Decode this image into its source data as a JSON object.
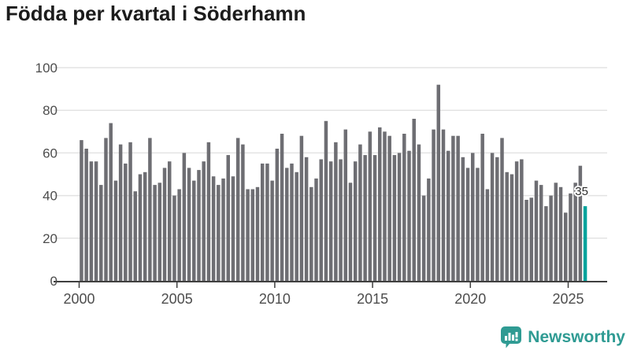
{
  "title": "Födda per kvartal i Söderhamn",
  "footer": {
    "brand": "Newsworthy"
  },
  "colors": {
    "bar": "#6e6e73",
    "highlight": "#00a39c",
    "grid": "#e3e3e3",
    "axis_text": "#4d4d4d",
    "axis_line": "#3f3f3f",
    "title_text": "#1c1c1c",
    "logo": "#2f9b93",
    "annotation_text": "#2d2d2d"
  },
  "chart_data": {
    "type": "bar",
    "title": "Födda per kvartal i Söderhamn",
    "x_range": "2000 Q1 – 2025 Q4",
    "period": "quarterly",
    "xlabel": "",
    "ylabel": "",
    "ylim": [
      0,
      100
    ],
    "grid": true,
    "yticks": [
      0,
      20,
      40,
      60,
      80,
      100
    ],
    "xticks": [
      "2000",
      "2005",
      "2010",
      "2015",
      "2020",
      "2025"
    ],
    "values": [
      66,
      62,
      56,
      56,
      45,
      67,
      74,
      47,
      64,
      55,
      65,
      42,
      50,
      51,
      67,
      45,
      46,
      53,
      56,
      40,
      43,
      60,
      53,
      47,
      52,
      56,
      65,
      49,
      45,
      48,
      59,
      49,
      67,
      64,
      43,
      43,
      44,
      55,
      55,
      47,
      62,
      69,
      53,
      55,
      51,
      68,
      58,
      44,
      48,
      57,
      75,
      56,
      65,
      57,
      71,
      46,
      56,
      64,
      59,
      70,
      59,
      72,
      70,
      68,
      59,
      60,
      69,
      61,
      76,
      64,
      40,
      48,
      71,
      92,
      71,
      61,
      68,
      68,
      58,
      53,
      60,
      53,
      69,
      43,
      60,
      58,
      67,
      51,
      50,
      56,
      57,
      38,
      39,
      47,
      45,
      35,
      40,
      46,
      44,
      32,
      41,
      46,
      54,
      35
    ],
    "highlight_last": true,
    "last_value_label": "35"
  }
}
